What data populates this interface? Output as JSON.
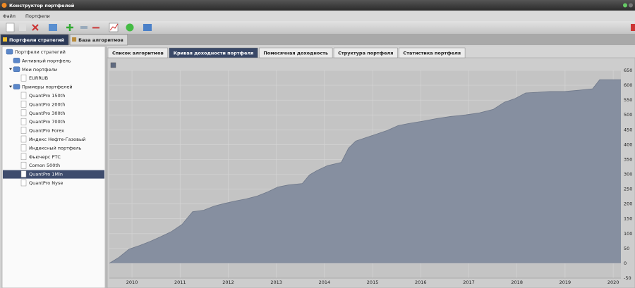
{
  "window": {
    "title": "Конструктор портфелей"
  },
  "menu": [
    "Файл",
    "Портфели"
  ],
  "main_tabs": {
    "items": [
      "Портфели стратегий",
      "База алгоритмов"
    ],
    "active": 0
  },
  "tree": {
    "label": "Портфели стратегий",
    "children": [
      {
        "label": "Активный портфель"
      },
      {
        "label": "Мои портфели",
        "children": [
          {
            "label": "EURRUB"
          }
        ]
      },
      {
        "label": "Примеры портфелей",
        "children": [
          {
            "label": "QuantPro 150th"
          },
          {
            "label": "QuantPro 200th"
          },
          {
            "label": "QuantPro 300th"
          },
          {
            "label": "QuantPro 700th"
          },
          {
            "label": "QuantPro Forex"
          },
          {
            "label": "Индекс Нефте-Газовый"
          },
          {
            "label": "Индексный портфель"
          },
          {
            "label": "Фьючерс РТС"
          },
          {
            "label": "Comon 500th"
          },
          {
            "label": "QuantPro 1Mln",
            "selected": true
          },
          {
            "label": "QuantPro Nyse"
          }
        ]
      }
    ]
  },
  "content_tabs": {
    "items": [
      "Список алгоритмов",
      "Кривая доходности портфеля",
      "Помесячная доходность",
      "Структура портфеля",
      "Статистика портфеля"
    ],
    "active": 1
  },
  "chart_data": {
    "type": "area",
    "color": "#868fa0",
    "grid": true,
    "x": [
      2009.53,
      2009.72,
      2009.94,
      2010.16,
      2010.38,
      2010.6,
      2010.82,
      2011.04,
      2011.26,
      2011.49,
      2011.71,
      2011.93,
      2012.15,
      2012.37,
      2012.59,
      2012.81,
      2013.03,
      2013.25,
      2013.54,
      2013.69,
      2013.84,
      2014.06,
      2014.35,
      2014.5,
      2014.65,
      2014.87,
      2015.09,
      2015.31,
      2015.53,
      2015.75,
      2016.04,
      2016.34,
      2016.63,
      2016.93,
      2017.22,
      2017.51,
      2017.74,
      2017.96,
      2018.18,
      2018.4,
      2018.69,
      2018.99,
      2019.28,
      2019.57,
      2019.72,
      2019.94,
      2020.16
    ],
    "values": [
      0,
      19,
      48,
      60,
      74,
      90,
      107,
      131,
      174,
      179,
      193,
      202,
      210,
      217,
      226,
      240,
      257,
      264,
      269,
      298,
      312,
      329,
      340,
      388,
      412,
      424,
      436,
      448,
      464,
      471,
      479,
      488,
      495,
      500,
      507,
      519,
      543,
      555,
      574,
      576,
      579,
      579,
      583,
      588,
      619,
      619,
      619
    ],
    "xlim": [
      2009.53,
      2020.16
    ],
    "xticks": [
      2010,
      2011,
      2012,
      2013,
      2014,
      2015,
      2016,
      2017,
      2018,
      2019,
      2020
    ],
    "ylim": [
      -50,
      650
    ],
    "yticks": [
      -50,
      0,
      50,
      100,
      150,
      200,
      250,
      300,
      350,
      400,
      450,
      500,
      550,
      600,
      650
    ]
  }
}
